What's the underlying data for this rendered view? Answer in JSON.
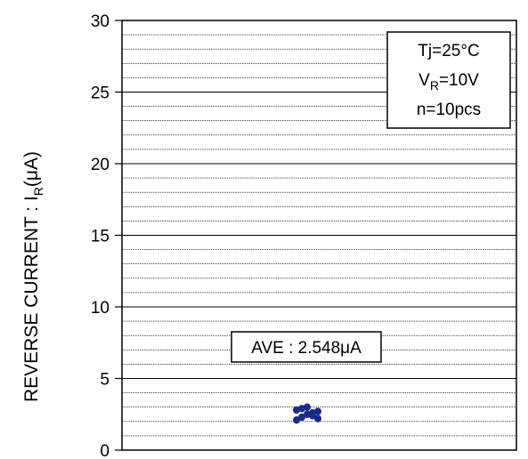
{
  "chart_data": {
    "type": "scatter",
    "title": "",
    "xlabel": "",
    "ylabel": {
      "text": "REVERSE CURRENT : I",
      "subscript": "R",
      "unit": "(μA)"
    },
    "ylim": [
      0,
      30
    ],
    "y_ticks": [
      "0",
      "5",
      "10",
      "15",
      "20",
      "25",
      "30"
    ],
    "minor_gridline_step": 1,
    "grid": true,
    "conditions": {
      "line1": "Tj=25°C",
      "line2_main": "V",
      "line2_sub": "R",
      "line2_rest": "=10V",
      "line3": "n=10pcs",
      "placement": "top-right"
    },
    "average_label": "AVE : 2.548μA",
    "series": [
      {
        "values": [
          2.1,
          2.3,
          2.5,
          2.6,
          2.7,
          2.8,
          2.9,
          3.0,
          2.4,
          2.2
        ],
        "color": "#1a2b8c"
      }
    ]
  }
}
